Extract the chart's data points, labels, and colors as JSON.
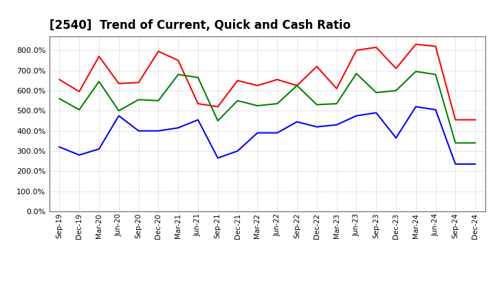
{
  "title": "[2540]  Trend of Current, Quick and Cash Ratio",
  "x_labels": [
    "Sep-19",
    "Dec-19",
    "Mar-20",
    "Jun-20",
    "Sep-20",
    "Dec-20",
    "Mar-21",
    "Jun-21",
    "Sep-21",
    "Dec-21",
    "Mar-22",
    "Jun-22",
    "Sep-22",
    "Dec-22",
    "Mar-23",
    "Jun-23",
    "Sep-23",
    "Dec-23",
    "Mar-24",
    "Jun-24",
    "Sep-24",
    "Dec-24"
  ],
  "current_ratio": [
    655,
    595,
    770,
    635,
    640,
    795,
    750,
    535,
    520,
    650,
    625,
    655,
    625,
    720,
    610,
    800,
    815,
    710,
    830,
    820,
    455,
    455
  ],
  "quick_ratio": [
    560,
    505,
    645,
    500,
    555,
    550,
    680,
    665,
    450,
    550,
    525,
    535,
    625,
    530,
    535,
    685,
    590,
    600,
    695,
    680,
    340,
    340
  ],
  "cash_ratio": [
    320,
    280,
    310,
    475,
    400,
    400,
    415,
    455,
    265,
    300,
    390,
    390,
    445,
    420,
    430,
    475,
    490,
    365,
    520,
    505,
    235,
    235
  ],
  "current_color": "#FF0000",
  "quick_color": "#008000",
  "cash_color": "#0000FF",
  "ylim": [
    0,
    870
  ],
  "yticks": [
    0,
    100,
    200,
    300,
    400,
    500,
    600,
    700,
    800
  ],
  "background_color": "#FFFFFF",
  "grid_color": "#999999",
  "title_fontsize": 12
}
